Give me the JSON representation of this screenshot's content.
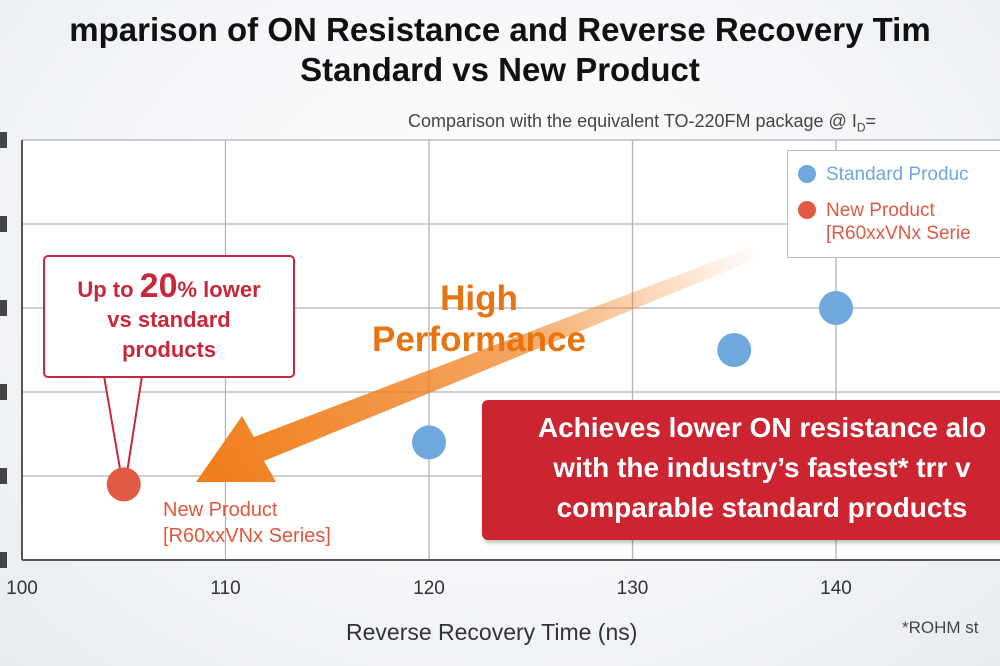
{
  "title_line1": "mparison of ON Resistance and Reverse Recovery Tim",
  "title_line2": "Standard vs New Product",
  "subtitle_prefix": "Comparison with the equivalent TO-220FM package @ I",
  "subtitle_sub": "D",
  "subtitle_suffix": "= ",
  "footnote": "*ROHM st",
  "legend": {
    "standard": "Standard Produc",
    "new_line1": "New Product",
    "new_line2": "[R60xxVNx Serie"
  },
  "annotation": {
    "high_performance_line1": "High",
    "high_performance_line2": "Performance",
    "callout_pre": "Up to ",
    "callout_big": "20",
    "callout_post": "% lower",
    "callout_line2": "vs standard",
    "callout_line3": "products",
    "point_label_line1": "New Product",
    "point_label_line2": "[R60xxVNx Series]",
    "banner_line1": "Achieves lower ON resistance alo",
    "banner_line2": "with the industry’s fastest* trr v",
    "banner_line3": "comparable standard products"
  },
  "colors": {
    "standard": "#6fa8dc",
    "new": "#e05a44",
    "arrow": "#f07d1a",
    "banner": "#cc2430"
  },
  "chart_data": {
    "type": "scatter",
    "title": "Comparison of ON Resistance and Reverse Recovery Time Standard vs New Product",
    "xlabel": "Reverse Recovery Time (ns)",
    "ylabel": "",
    "xlim": [
      100,
      150
    ],
    "x_ticks": [
      "100",
      "110",
      "120",
      "130",
      "140"
    ],
    "grid": true,
    "legend_position": "top-right",
    "series": [
      {
        "name": "Standard Produc",
        "color": "#6fa8dc",
        "points": [
          {
            "x": 120,
            "y": 1.4
          },
          {
            "x": 135,
            "y": 2.5
          },
          {
            "x": 140,
            "y": 3.0
          }
        ]
      },
      {
        "name": "New Product [R60xxVNx Serie",
        "color": "#e05a44",
        "points": [
          {
            "x": 105,
            "y": 0.9
          }
        ]
      }
    ]
  }
}
